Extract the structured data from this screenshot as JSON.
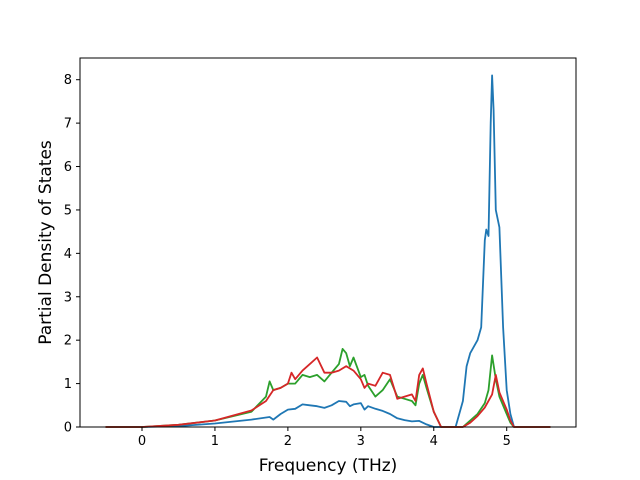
{
  "chart_data": {
    "type": "line",
    "title": "",
    "xlabel": "Frequency (THz)",
    "ylabel": "Partial Density of States",
    "xlim": [
      -0.85,
      5.95
    ],
    "ylim": [
      0,
      8.5
    ],
    "grid": false,
    "x_ticks": [
      "0",
      "1",
      "2",
      "3",
      "4",
      "5"
    ],
    "y_ticks": [
      "0",
      "1",
      "2",
      "3",
      "4",
      "5",
      "6",
      "7",
      "8"
    ],
    "series": [
      {
        "color": "#1f77b4",
        "x": [
          -0.5,
          0.0,
          0.5,
          1.0,
          1.5,
          1.75,
          1.8,
          1.9,
          2.0,
          2.1,
          2.2,
          2.3,
          2.4,
          2.5,
          2.6,
          2.7,
          2.8,
          2.85,
          2.9,
          3.0,
          3.05,
          3.1,
          3.2,
          3.3,
          3.4,
          3.5,
          3.6,
          3.7,
          3.8,
          3.9,
          4.0,
          4.1,
          4.2,
          4.3,
          4.4,
          4.45,
          4.5,
          4.6,
          4.65,
          4.7,
          4.72,
          4.75,
          4.78,
          4.8,
          4.82,
          4.85,
          4.9,
          4.95,
          5.0,
          5.05,
          5.1,
          5.2,
          5.3,
          5.6
        ],
        "y": [
          0,
          0,
          0.02,
          0.08,
          0.17,
          0.23,
          0.17,
          0.3,
          0.4,
          0.42,
          0.52,
          0.5,
          0.48,
          0.44,
          0.5,
          0.6,
          0.58,
          0.48,
          0.52,
          0.55,
          0.4,
          0.48,
          0.42,
          0.37,
          0.3,
          0.2,
          0.16,
          0.13,
          0.14,
          0.06,
          0,
          0,
          0,
          0,
          0.6,
          1.4,
          1.7,
          2.0,
          2.3,
          4.3,
          4.55,
          4.4,
          7.0,
          8.1,
          7.3,
          5.0,
          4.6,
          2.3,
          0.85,
          0.3,
          0,
          0,
          0,
          0
        ]
      },
      {
        "color": "#2ca02c",
        "x": [
          -0.5,
          0.0,
          0.5,
          1.0,
          1.5,
          1.7,
          1.75,
          1.8,
          1.9,
          2.0,
          2.1,
          2.2,
          2.3,
          2.4,
          2.5,
          2.6,
          2.7,
          2.75,
          2.8,
          2.85,
          2.9,
          3.0,
          3.05,
          3.1,
          3.2,
          3.3,
          3.4,
          3.5,
          3.6,
          3.7,
          3.75,
          3.8,
          3.85,
          3.9,
          4.0,
          4.1,
          4.2,
          4.4,
          4.5,
          4.6,
          4.7,
          4.75,
          4.8,
          4.85,
          4.9,
          5.0,
          5.05,
          5.1,
          5.2,
          5.6
        ],
        "y": [
          0,
          0,
          0.05,
          0.15,
          0.35,
          0.7,
          1.05,
          0.85,
          0.9,
          1.0,
          1.0,
          1.2,
          1.15,
          1.2,
          1.05,
          1.25,
          1.45,
          1.8,
          1.7,
          1.4,
          1.6,
          1.15,
          1.2,
          0.95,
          0.7,
          0.85,
          1.1,
          0.7,
          0.65,
          0.6,
          0.5,
          1.0,
          1.2,
          0.9,
          0.35,
          0,
          0,
          0,
          0.15,
          0.3,
          0.55,
          0.85,
          1.65,
          1.1,
          0.7,
          0.3,
          0.1,
          0,
          0,
          0
        ]
      },
      {
        "color": "#d62728",
        "x": [
          -0.5,
          0.0,
          0.5,
          1.0,
          1.5,
          1.7,
          1.8,
          1.9,
          2.0,
          2.05,
          2.1,
          2.2,
          2.3,
          2.4,
          2.5,
          2.6,
          2.7,
          2.8,
          2.9,
          3.0,
          3.05,
          3.1,
          3.2,
          3.3,
          3.4,
          3.5,
          3.6,
          3.7,
          3.75,
          3.8,
          3.85,
          3.9,
          4.0,
          4.1,
          4.2,
          4.4,
          4.5,
          4.6,
          4.7,
          4.8,
          4.85,
          4.9,
          5.0,
          5.05,
          5.1,
          5.2,
          5.6
        ],
        "y": [
          0,
          0,
          0.05,
          0.15,
          0.38,
          0.6,
          0.85,
          0.9,
          1.0,
          1.25,
          1.1,
          1.3,
          1.45,
          1.6,
          1.25,
          1.25,
          1.3,
          1.4,
          1.3,
          1.1,
          0.9,
          1.0,
          0.95,
          1.25,
          1.2,
          0.65,
          0.7,
          0.75,
          0.6,
          1.2,
          1.35,
          1.0,
          0.35,
          0,
          0,
          0,
          0.1,
          0.25,
          0.45,
          0.75,
          1.2,
          0.8,
          0.4,
          0.15,
          0,
          0,
          0
        ]
      }
    ]
  }
}
